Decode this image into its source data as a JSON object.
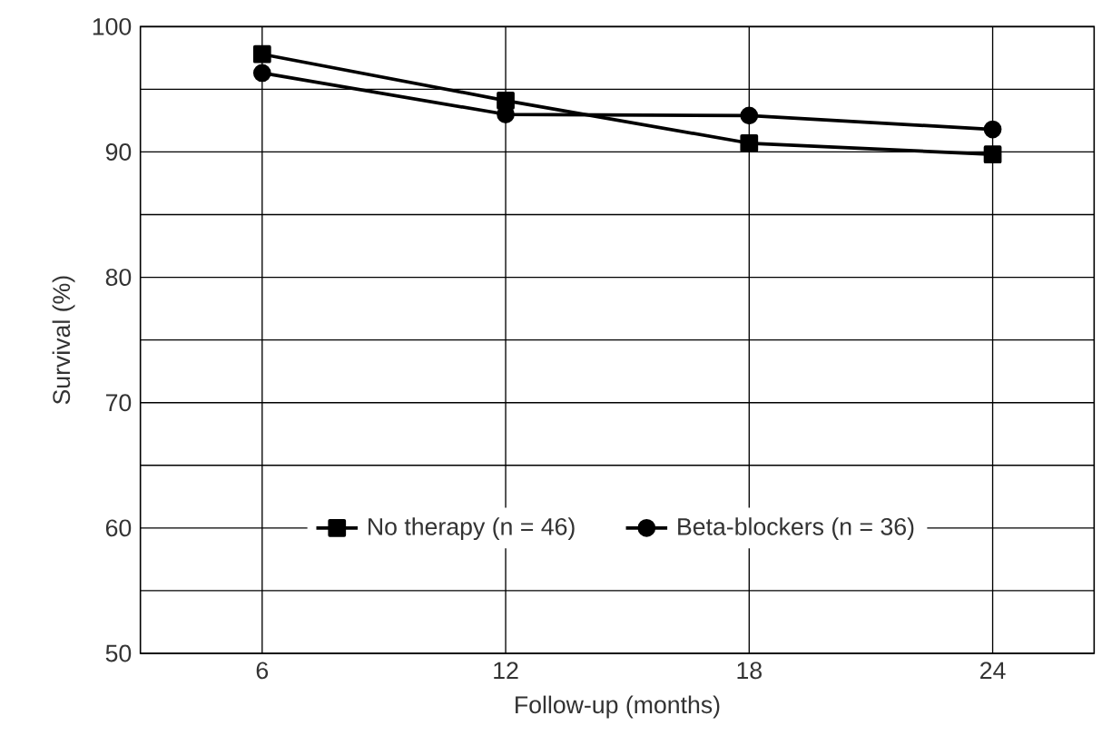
{
  "chart_data": {
    "type": "line",
    "xlabel": "Follow-up (months)",
    "ylabel": "Survival (%)",
    "x": [
      6,
      12,
      18,
      24
    ],
    "series": [
      {
        "name": "No therapy (n = 46)",
        "color": "#000000",
        "marker": "square",
        "values": [
          97.8,
          94.1,
          90.7,
          89.8
        ]
      },
      {
        "name": "Beta-blockers (n = 36)",
        "color": "#000000",
        "marker": "circle",
        "values": [
          96.3,
          93.0,
          92.9,
          91.8
        ]
      }
    ],
    "xlim": [
      3,
      26.5
    ],
    "xticks": [
      6,
      12,
      18,
      24
    ],
    "ylim": [
      50,
      100
    ],
    "yticks": [
      50,
      {
        "value": 55,
        "label": null
      },
      60,
      {
        "value": 65,
        "label": null
      },
      70,
      {
        "value": 75,
        "label": null
      },
      80,
      {
        "value": 85,
        "label": null
      },
      90,
      {
        "value": 95,
        "label": null
      },
      100
    ],
    "grid": true,
    "legend": "bottom",
    "line_style": "solid"
  }
}
